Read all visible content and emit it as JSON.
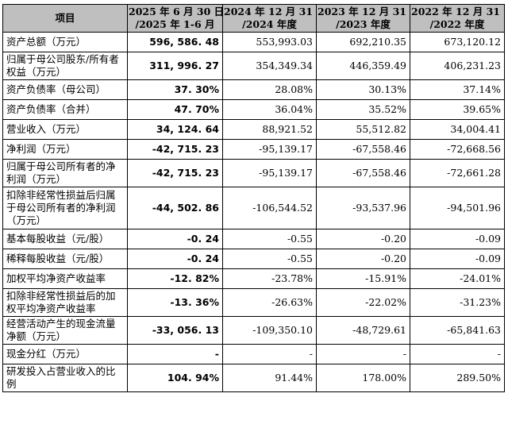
{
  "table": {
    "headers": [
      {
        "line1": "项目",
        "line2": ""
      },
      {
        "line1": "2025 年 6 月 30 日",
        "line2": "/2025 年 1-6 月"
      },
      {
        "line1": "2024 年 12 月 31 日",
        "line2": "/2024 年度"
      },
      {
        "line1": "2023 年 12 月 31 日",
        "line2": "/2023 年度"
      },
      {
        "line1": "2022 年 12 月 31 日",
        "line2": "/2022 年度"
      }
    ],
    "rows": [
      {
        "label": "资产总额（万元）",
        "values": [
          "596, 586. 48",
          "553,993.03",
          "692,210.35",
          "673,120.12"
        ]
      },
      {
        "label": "归属于母公司股东/所有者权益（万元）",
        "values": [
          "311, 996. 27",
          "354,349.34",
          "446,359.49",
          "406,231.23"
        ]
      },
      {
        "label": "资产负债率（母公司）",
        "values": [
          "37. 30%",
          "28.08%",
          "30.13%",
          "37.14%"
        ]
      },
      {
        "label": "资产负债率（合并）",
        "values": [
          "47. 70%",
          "36.04%",
          "35.52%",
          "39.65%"
        ]
      },
      {
        "label": "营业收入（万元）",
        "values": [
          "34, 124. 64",
          "88,921.52",
          "55,512.82",
          "34,004.41"
        ]
      },
      {
        "label": "净利润（万元）",
        "values": [
          "-42, 715. 23",
          "-95,139.17",
          "-67,558.46",
          "-72,668.56"
        ]
      },
      {
        "label": "归属于母公司所有者的净利润（万元）",
        "values": [
          "-42, 715. 23",
          "-95,139.17",
          "-67,558.46",
          "-72,661.28"
        ]
      },
      {
        "label": "扣除非经常性损益后归属于母公司所有者的净利润（万元）",
        "values": [
          "-44, 502. 86",
          "-106,544.52",
          "-93,537.96",
          "-94,501.96"
        ]
      },
      {
        "label": "基本每股收益（元/股）",
        "values": [
          "-0. 24",
          "-0.55",
          "-0.20",
          "-0.09"
        ]
      },
      {
        "label": "稀释每股收益（元/股）",
        "values": [
          "-0. 24",
          "-0.55",
          "-0.20",
          "-0.09"
        ]
      },
      {
        "label": "加权平均净资产收益率",
        "values": [
          "-12. 82%",
          "-23.78%",
          "-15.91%",
          "-24.01%"
        ]
      },
      {
        "label": "扣除非经常性损益后的加权平均净资产收益率",
        "values": [
          "-13. 36%",
          "-26.63%",
          "-22.02%",
          "-31.23%"
        ]
      },
      {
        "label": "经营活动产生的现金流量净额（万元）",
        "values": [
          "-33, 056. 13",
          "-109,350.10",
          "-48,729.61",
          "-65,841.63"
        ]
      },
      {
        "label": "现金分红（万元）",
        "values": [
          "-",
          "-",
          "-",
          "-"
        ]
      },
      {
        "label": "研发投入占营业收入的比例",
        "values": [
          "104. 94%",
          "91.44%",
          "178.00%",
          "289.50%"
        ]
      }
    ]
  }
}
